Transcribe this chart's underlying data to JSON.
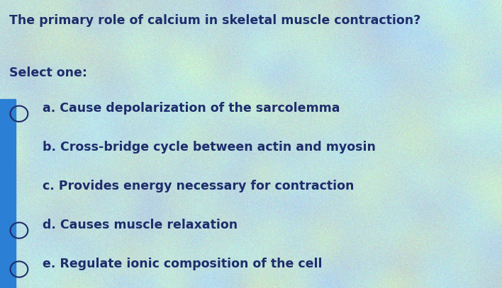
{
  "title": "The primary role of calcium in skeletal muscle contraction?",
  "select_label": "Select one:",
  "options": [
    "a. Cause depolarization of the sarcolemma",
    "b. Cross-bridge cycle between actin and myosin",
    "c. Provides energy necessary for contraction",
    "d. Causes muscle relaxation",
    "e. Regulate ionic composition of the cell"
  ],
  "radio_indices": [
    0,
    3,
    4
  ],
  "text_color": "#1e2d6b",
  "blue_bar_color": "#2b7fd4",
  "bg_base_r": 0.72,
  "bg_base_g": 0.8,
  "bg_base_b": 0.87,
  "figwidth": 7.08,
  "figheight": 4.07,
  "title_fontsize": 12.5,
  "select_fontsize": 12.5,
  "option_fontsize": 12.5
}
